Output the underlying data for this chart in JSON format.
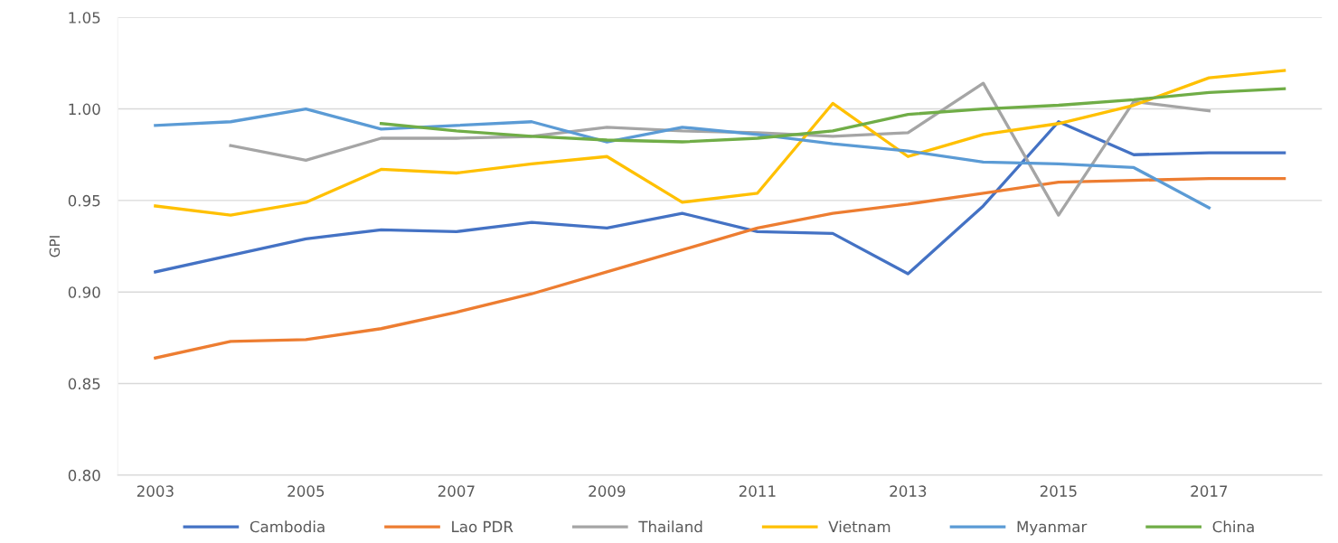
{
  "chart_data": {
    "type": "line",
    "ylabel": "GPI",
    "categories": [
      "2003",
      null,
      "2005",
      null,
      "2007",
      null,
      "2009",
      null,
      "2011",
      null,
      "2013",
      null,
      "2015",
      null,
      "2017",
      null
    ],
    "series": [
      {
        "name": "Cambodia",
        "color": "#4472c4",
        "values": [
          0.911,
          0.92,
          0.929,
          0.934,
          0.933,
          0.938,
          0.935,
          0.943,
          0.933,
          0.932,
          0.91,
          0.947,
          0.993,
          0.975,
          0.976,
          0.976
        ]
      },
      {
        "name": "Lao PDR",
        "color": "#ed7d31",
        "values": [
          0.864,
          0.873,
          0.874,
          0.88,
          0.889,
          0.899,
          0.911,
          0.923,
          0.935,
          0.943,
          0.948,
          0.954,
          0.96,
          0.961,
          0.962,
          0.962
        ]
      },
      {
        "name": "Thailand",
        "color": "#a5a5a5",
        "values": [
          null,
          0.98,
          0.972,
          0.984,
          0.984,
          0.985,
          0.99,
          0.988,
          0.987,
          0.985,
          0.987,
          1.014,
          0.942,
          1.004,
          0.999,
          null
        ]
      },
      {
        "name": "Vietnam",
        "color": "#ffc000",
        "values": [
          0.947,
          0.942,
          0.949,
          0.967,
          0.965,
          0.97,
          0.974,
          0.949,
          0.954,
          1.003,
          0.974,
          0.986,
          0.992,
          1.002,
          1.017,
          1.021
        ]
      },
      {
        "name": "Myanmar",
        "color": "#5b9bd5",
        "values": [
          0.991,
          0.993,
          1.0,
          0.989,
          0.991,
          0.993,
          0.982,
          0.99,
          0.986,
          0.981,
          0.977,
          0.971,
          0.97,
          0.968,
          0.946,
          null
        ]
      },
      {
        "name": "China",
        "color": "#70ad47",
        "values": [
          null,
          null,
          null,
          0.992,
          0.988,
          0.985,
          0.983,
          0.982,
          0.984,
          0.988,
          0.997,
          1.0,
          1.002,
          1.005,
          1.009,
          1.011
        ]
      }
    ],
    "ylim": [
      0.8,
      1.05
    ],
    "yticks": [
      {
        "value": 0.8,
        "label": "0.80"
      },
      {
        "value": 0.85,
        "label": "0.85"
      },
      {
        "value": 0.9,
        "label": "0.90"
      },
      {
        "value": 0.95,
        "label": "0.95"
      },
      {
        "value": 1.0,
        "label": "1.00"
      },
      {
        "value": 1.05,
        "label": "1.05"
      }
    ],
    "grid": "y",
    "legend": "bottom",
    "marker": "none",
    "line_style": "solid"
  }
}
